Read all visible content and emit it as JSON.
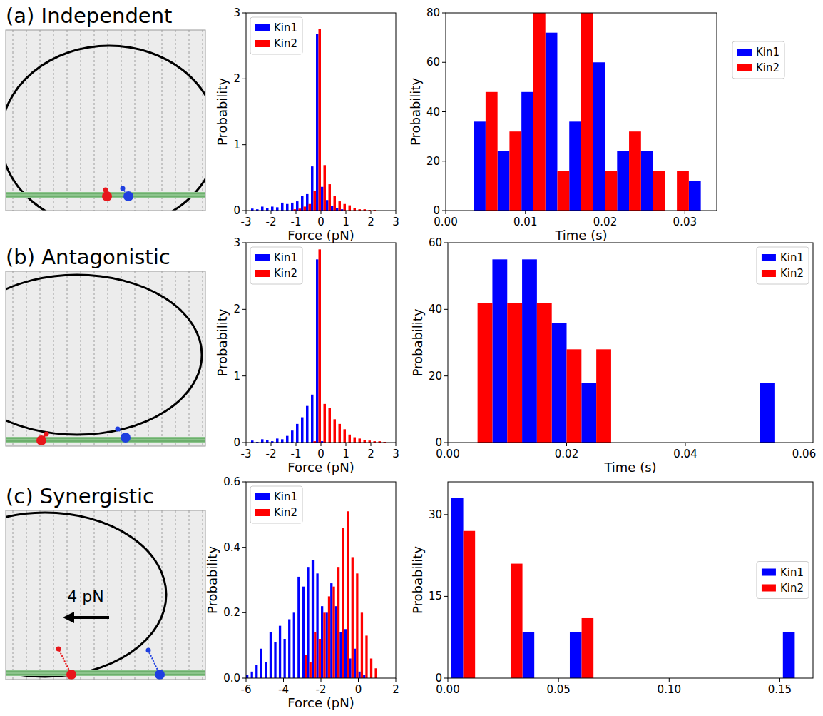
{
  "panel_titles": [
    "(a) Independent",
    "(b) Antagonistic",
    "(c) Synergistic"
  ],
  "annotation": "4 pN",
  "chart_data": [
    {
      "type": "histogram",
      "x_label": "Force (pN)",
      "y_label": "Probability",
      "bins": [
        -3.0,
        -2.8,
        -2.6,
        -2.4,
        -2.2,
        -2.0,
        -1.8,
        -1.6,
        -1.4,
        -1.2,
        -1.0,
        -0.8,
        -0.6,
        -0.4,
        -0.2,
        0.0,
        0.2,
        0.4,
        0.6,
        0.8,
        1.0,
        1.2,
        1.4,
        1.6,
        1.8,
        2.0,
        2.2,
        2.4,
        2.6,
        2.8,
        3.0
      ],
      "series": [
        {
          "name": "Kin1",
          "color": "#0000ff",
          "values": [
            0,
            0.03,
            0.02,
            0.06,
            0.04,
            0.06,
            0.05,
            0.12,
            0.1,
            0.12,
            0.14,
            0.22,
            0.25,
            0.67,
            2.68,
            0.36,
            0.16,
            0.07,
            0.04,
            0.02,
            0,
            0,
            0,
            0,
            0,
            0,
            0,
            0,
            0,
            0
          ]
        },
        {
          "name": "Kin2",
          "color": "#ff0000",
          "values": [
            0,
            0,
            0,
            0,
            0,
            0,
            0,
            0,
            0,
            0.02,
            0.03,
            0.06,
            0.1,
            0.3,
            2.76,
            0.69,
            0.4,
            0.22,
            0.14,
            0.1,
            0.08,
            0.04,
            0.02,
            0.02,
            0.01,
            0.01,
            0,
            0,
            0,
            0
          ]
        }
      ],
      "xlim": [
        -3,
        3
      ],
      "xticks": [
        -3,
        -2,
        -1,
        0,
        1,
        2,
        3
      ],
      "ylim": [
        0,
        3
      ],
      "yticks": [
        0,
        1,
        2,
        3
      ],
      "grid": false,
      "legend": "upper left"
    },
    {
      "type": "histogram",
      "x_label": "Time (s)",
      "y_label": "Probability",
      "bins": [
        0.0035,
        0.0065,
        0.0095,
        0.0125,
        0.0155,
        0.0185,
        0.0215,
        0.0245,
        0.0275,
        0.0305,
        0.0335
      ],
      "series": [
        {
          "name": "Kin1",
          "color": "#0000ff",
          "values": [
            36,
            24,
            48,
            72,
            36,
            60,
            24,
            24,
            0,
            12
          ]
        },
        {
          "name": "Kin2",
          "color": "#ff0000",
          "values": [
            48,
            32,
            80,
            16,
            80,
            16,
            32,
            16,
            16,
            0
          ]
        }
      ],
      "xlim": [
        0,
        0.034
      ],
      "xticks": [
        {
          "value": 0,
          "label": "0.00"
        },
        0.01,
        0.02,
        0.03
      ],
      "ylim": [
        0,
        80
      ],
      "yticks": [
        0,
        20,
        40,
        60,
        80
      ],
      "grid": false,
      "legend": "outside right"
    },
    {
      "type": "histogram",
      "x_label": "Force (pN)",
      "y_label": "Probability",
      "bins": [
        -3.0,
        -2.8,
        -2.6,
        -2.4,
        -2.2,
        -2.0,
        -1.8,
        -1.6,
        -1.4,
        -1.2,
        -1.0,
        -0.8,
        -0.6,
        -0.4,
        -0.2,
        0.0,
        0.2,
        0.4,
        0.6,
        0.8,
        1.0,
        1.2,
        1.4,
        1.6,
        1.8,
        2.0,
        2.2,
        2.4,
        2.6,
        2.8,
        3.0
      ],
      "series": [
        {
          "name": "Kin1",
          "color": "#0000ff",
          "values": [
            0,
            0.03,
            0.01,
            0.05,
            0.04,
            0.02,
            0.06,
            0.05,
            0.1,
            0.18,
            0.28,
            0.38,
            0.55,
            0.72,
            2.75,
            0.02,
            0,
            0,
            0,
            0,
            0,
            0,
            0,
            0,
            0,
            0,
            0,
            0,
            0,
            0
          ]
        },
        {
          "name": "Kin2",
          "color": "#ff0000",
          "values": [
            0,
            0,
            0,
            0,
            0,
            0,
            0,
            0,
            0,
            0,
            0,
            0,
            0,
            0.02,
            2.9,
            0.58,
            0.52,
            0.35,
            0.28,
            0.2,
            0.12,
            0.08,
            0.06,
            0.04,
            0.03,
            0.02,
            0.02,
            0.01,
            0,
            0
          ]
        }
      ],
      "xlim": [
        -3,
        3
      ],
      "xticks": [
        -3,
        -2,
        -1,
        0,
        1,
        2,
        3
      ],
      "ylim": [
        0,
        3
      ],
      "yticks": [
        0,
        1,
        2,
        3
      ],
      "grid": false,
      "legend": "upper left"
    },
    {
      "type": "histogram",
      "x_label": "Time (s)",
      "y_label": "Probability",
      "bins": [
        0.0025,
        0.0075,
        0.0125,
        0.0175,
        0.0225,
        0.0275,
        0.0325,
        0.0375,
        0.0425,
        0.0475,
        0.0525,
        0.0575
      ],
      "series": [
        {
          "name": "Kin1",
          "color": "#0000ff",
          "values": [
            0,
            55,
            55,
            36,
            18,
            0,
            0,
            0,
            0,
            0,
            18
          ]
        },
        {
          "name": "Kin2",
          "color": "#ff0000",
          "values": [
            42,
            42,
            42,
            28,
            28,
            0,
            0,
            0,
            0,
            0,
            0
          ]
        }
      ],
      "xlim": [
        0,
        0.0615
      ],
      "xticks": [
        {
          "value": 0,
          "label": "0.00"
        },
        0.02,
        0.04,
        0.06
      ],
      "ylim": [
        0,
        60
      ],
      "yticks": [
        0,
        20,
        40,
        60
      ],
      "grid": false,
      "legend": "upper right"
    },
    {
      "type": "histogram",
      "x_label": "Force (pN)",
      "y_label": "Probability",
      "bins": [
        -6.0,
        -5.75,
        -5.5,
        -5.25,
        -5.0,
        -4.75,
        -4.5,
        -4.25,
        -4.0,
        -3.75,
        -3.5,
        -3.25,
        -3.0,
        -2.75,
        -2.5,
        -2.25,
        -2.0,
        -1.75,
        -1.5,
        -1.25,
        -1.0,
        -0.75,
        -0.5,
        -0.25,
        0.0,
        0.25,
        0.5,
        0.75,
        1.0,
        1.25
      ],
      "series": [
        {
          "name": "Kin1",
          "color": "#0000ff",
          "values": [
            0.01,
            0.02,
            0.04,
            0.09,
            0.05,
            0.14,
            0.11,
            0.16,
            0.12,
            0.18,
            0.2,
            0.31,
            0.28,
            0.34,
            0.36,
            0.32,
            0.22,
            0.2,
            0.29,
            0.22,
            0.14,
            0.15,
            0.06,
            0.09,
            0.02,
            0.01,
            0,
            0,
            0
          ]
        },
        {
          "name": "Kin2",
          "color": "#ff0000",
          "values": [
            0,
            0,
            0,
            0,
            0,
            0,
            0,
            0,
            0,
            0,
            0,
            0,
            0.07,
            0.05,
            0.14,
            0.12,
            0.2,
            0.25,
            0.28,
            0.34,
            0.46,
            0.51,
            0.37,
            0.32,
            0.2,
            0.13,
            0.06,
            0.03,
            0
          ]
        }
      ],
      "xlim": [
        -6,
        2
      ],
      "xticks": [
        -6,
        -4,
        -2,
        0,
        2
      ],
      "ylim": [
        0,
        0.6
      ],
      "yticks": [
        {
          "value": 0,
          "label": "0.0"
        },
        0.2,
        0.4,
        0.6
      ],
      "grid": false,
      "legend": "upper left"
    },
    {
      "type": "histogram",
      "y_label": "Probability",
      "bins": [
        0.0016,
        0.0123,
        0.023,
        0.0337,
        0.0444,
        0.0551,
        0.0658,
        0.0765,
        0.0872,
        0.0979,
        0.1086,
        0.1193,
        0.13,
        0.1407,
        0.1514,
        0.1621
      ],
      "series": [
        {
          "name": "Kin1",
          "color": "#0000ff",
          "values": [
            33,
            0,
            0,
            8.5,
            0,
            8.5,
            0,
            0,
            0,
            0,
            0,
            0,
            0,
            0,
            8.5
          ]
        },
        {
          "name": "Kin2",
          "color": "#ff0000",
          "values": [
            27,
            0,
            21,
            0,
            0,
            11,
            0,
            0,
            0,
            0,
            0,
            0,
            0,
            0,
            0
          ]
        }
      ],
      "xlim": [
        0,
        0.165
      ],
      "xticks": [
        {
          "value": 0,
          "label": "0.00"
        },
        0.05,
        {
          "value": 0.1,
          "label": "0.10"
        },
        0.15
      ],
      "ylim": [
        0,
        36
      ],
      "yticks": [
        0,
        15,
        30
      ],
      "grid": false,
      "legend": "center right"
    }
  ]
}
